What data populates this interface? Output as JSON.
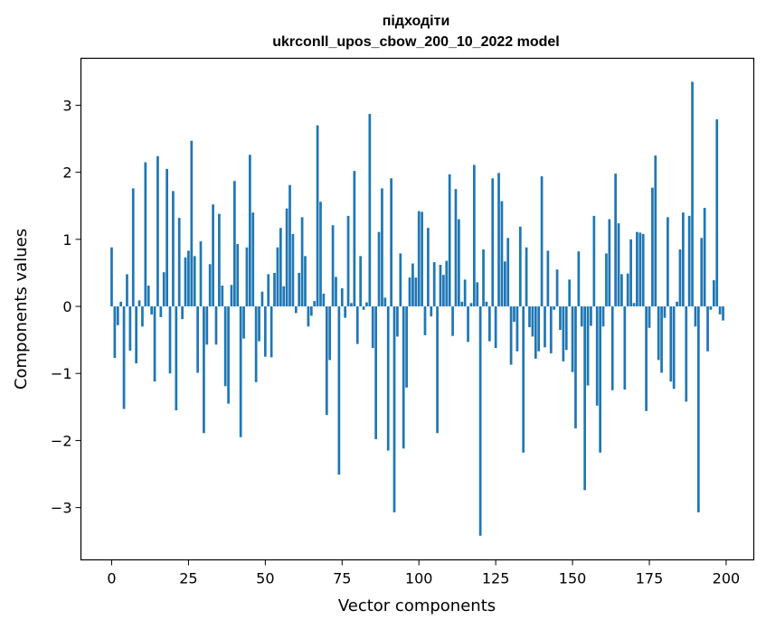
{
  "chart_data": {
    "type": "bar",
    "title": "підходіти",
    "subtitle": "ukrconll_upos_cbow_200_10_2022 model",
    "xlabel": "Vector components",
    "ylabel": "Components values",
    "xlim": [
      -10,
      209
    ],
    "ylim": [
      -3.78,
      3.7
    ],
    "xticks": [
      0,
      25,
      50,
      75,
      100,
      125,
      150,
      175,
      200
    ],
    "yticks": [
      -3,
      -2,
      -1,
      0,
      1,
      2,
      3
    ],
    "xtick_labels": [
      "0",
      "25",
      "50",
      "75",
      "100",
      "125",
      "150",
      "175",
      "200"
    ],
    "ytick_labels": [
      "−3",
      "−2",
      "−1",
      "0",
      "1",
      "2",
      "3"
    ],
    "bar_color": "#1f77b4",
    "grid": false,
    "values": [
      0.88,
      -0.77,
      -0.28,
      0.07,
      -1.53,
      0.48,
      -0.66,
      1.76,
      -0.85,
      0.09,
      -0.3,
      2.15,
      0.31,
      -0.12,
      -1.12,
      2.24,
      -0.16,
      0.51,
      2.05,
      -1.0,
      1.72,
      -1.55,
      1.32,
      -0.19,
      0.73,
      0.83,
      2.47,
      0.75,
      -0.99,
      0.97,
      -1.89,
      -0.57,
      0.63,
      1.52,
      -0.57,
      1.38,
      0.31,
      -1.19,
      -1.45,
      0.32,
      1.87,
      0.93,
      -1.95,
      -0.48,
      0.88,
      2.26,
      1.4,
      -1.13,
      -0.52,
      0.22,
      -0.75,
      0.48,
      -0.76,
      0.5,
      0.88,
      1.17,
      0.3,
      1.46,
      1.81,
      1.08,
      -0.1,
      0.5,
      1.33,
      0.75,
      -0.3,
      -0.14,
      0.08,
      2.7,
      1.56,
      0.19,
      -1.62,
      -0.8,
      1.21,
      0.44,
      -2.51,
      0.27,
      -0.17,
      1.35,
      0.05,
      2.02,
      -0.56,
      0.75,
      -0.05,
      0.06,
      2.87,
      -0.62,
      -1.98,
      1.11,
      1.76,
      0.13,
      -2.15,
      1.91,
      -3.07,
      -0.45,
      0.79,
      -2.12,
      -1.21,
      0.43,
      0.64,
      0.43,
      1.42,
      1.41,
      -0.43,
      1.17,
      -0.15,
      0.66,
      -1.89,
      0.62,
      0.47,
      0.68,
      1.97,
      -0.44,
      1.75,
      1.3,
      0.07,
      0.4,
      -0.53,
      0.05,
      2.11,
      0.36,
      -3.42,
      0.85,
      0.07,
      -0.52,
      1.91,
      -0.62,
      1.99,
      1.57,
      0.67,
      1.02,
      -0.87,
      -0.23,
      -0.67,
      1.19,
      -2.18,
      0.88,
      -0.31,
      -0.45,
      -0.78,
      -0.67,
      1.94,
      -0.61,
      0.83,
      -0.7,
      -0.05,
      0.55,
      -0.35,
      -0.82,
      -0.65,
      0.4,
      -0.98,
      -1.82,
      0.82,
      -0.3,
      -2.74,
      -1.18,
      -0.29,
      1.35,
      -1.48,
      -2.18,
      -0.3,
      0.79,
      1.3,
      -1.25,
      1.98,
      1.24,
      0.48,
      -1.24,
      0.49,
      1.0,
      0.05,
      1.11,
      1.1,
      1.08,
      -1.56,
      -0.32,
      1.77,
      2.25,
      -0.8,
      -0.99,
      -0.17,
      1.33,
      -1.12,
      -1.23,
      0.07,
      0.85,
      1.4,
      -1.42,
      1.35,
      3.35,
      -0.3,
      -3.07,
      1.02,
      1.47,
      -0.67,
      -0.05,
      0.39,
      2.79,
      -0.12,
      -0.21
    ]
  }
}
